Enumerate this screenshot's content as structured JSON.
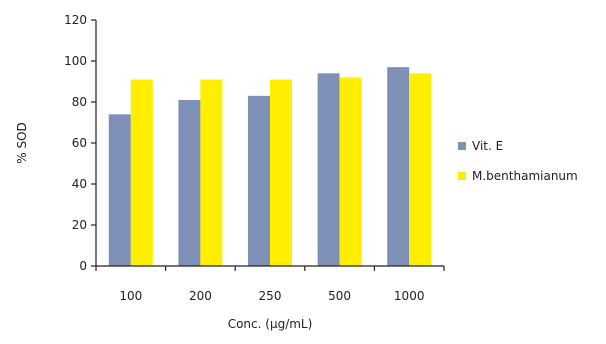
{
  "chart_data": {
    "type": "bar",
    "title": "",
    "xlabel": "Conc. (µg/mL)",
    "ylabel": "% SOD",
    "categories": [
      "100",
      "200",
      "250",
      "500",
      "1000"
    ],
    "series": [
      {
        "name": "Vit. E",
        "values": [
          74,
          81,
          83,
          94,
          97
        ]
      },
      {
        "name": "M.benthamianum",
        "values": [
          91,
          91,
          91,
          92,
          94
        ]
      }
    ],
    "ylim": [
      0,
      120
    ],
    "yticks": [
      0,
      20,
      40,
      60,
      80,
      100,
      120
    ],
    "grid": false,
    "legend_position": "right",
    "colors": {
      "series": [
        "#7f90b7",
        "#ffee00"
      ],
      "axis": "#222222"
    }
  }
}
